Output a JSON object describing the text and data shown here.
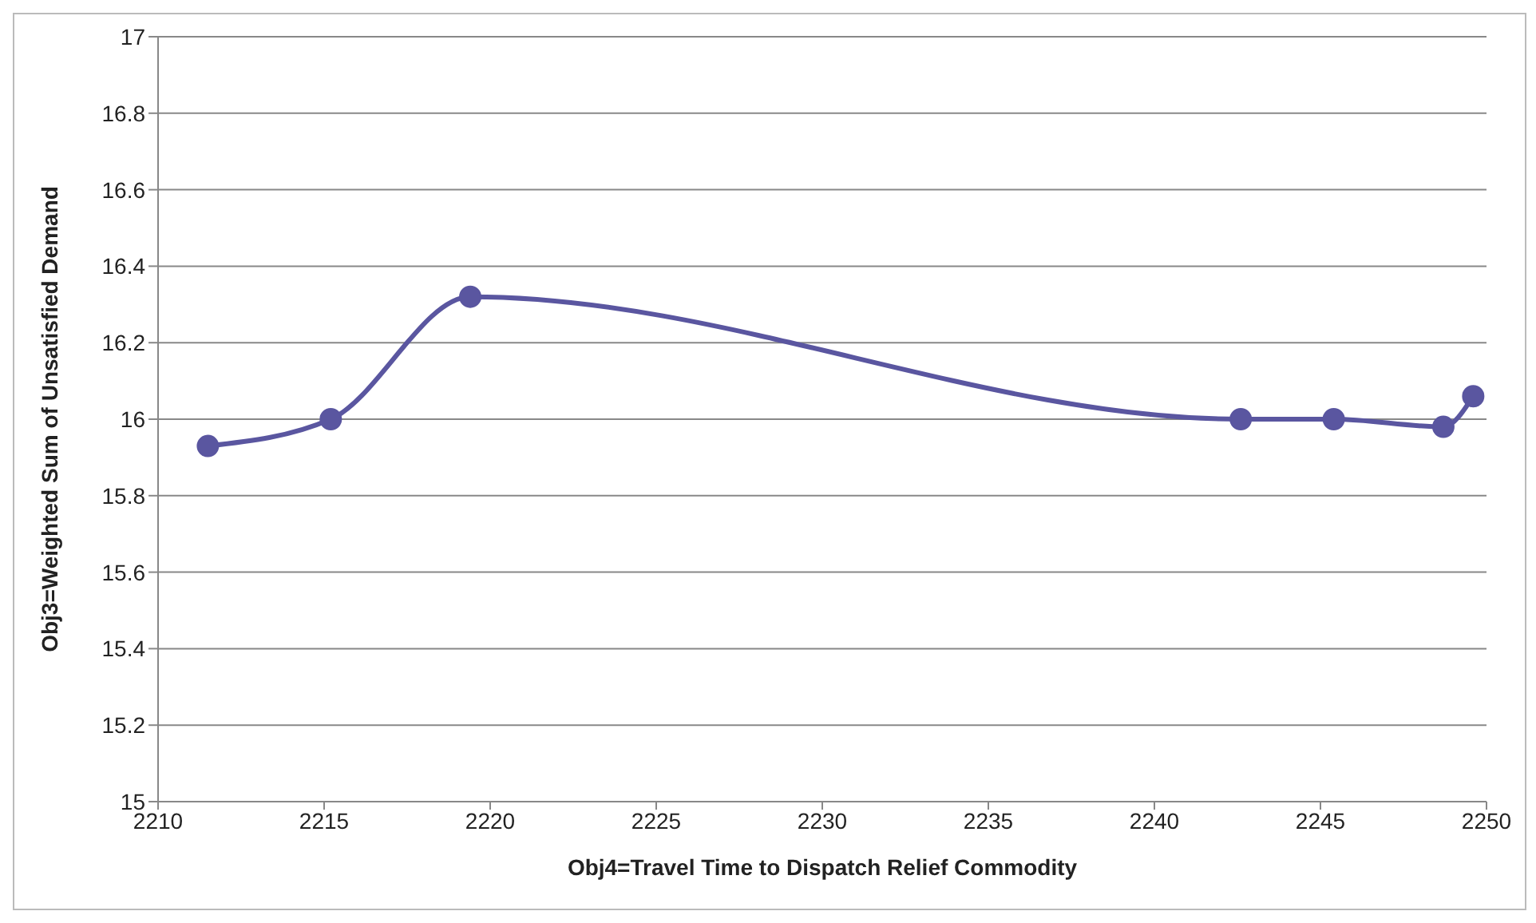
{
  "chart_data": {
    "type": "line",
    "xlabel": "Obj4=Travel Time to Dispatch Relief Commodity",
    "ylabel": "Obj3=Weighted Sum of Unsatisfied Demand",
    "x": [
      2211.5,
      2215.2,
      2219.4,
      2242.6,
      2245.4,
      2248.7,
      2249.6
    ],
    "series": [
      {
        "color": "#5a56a0",
        "values": [
          15.93,
          16.0,
          16.32,
          16.0,
          16.0,
          15.98,
          16.06
        ]
      }
    ],
    "xlim": [
      2210,
      2250
    ],
    "xticks": [
      2210,
      2215,
      2220,
      2225,
      2230,
      2235,
      2240,
      2245,
      2250
    ],
    "ylim": [
      15,
      17
    ],
    "yticks": [
      15,
      15.2,
      15.4,
      15.6,
      15.8,
      16,
      16.2,
      16.4,
      16.6,
      16.8,
      17
    ],
    "grid": "y",
    "marker": "circle",
    "line_style": "solid"
  }
}
